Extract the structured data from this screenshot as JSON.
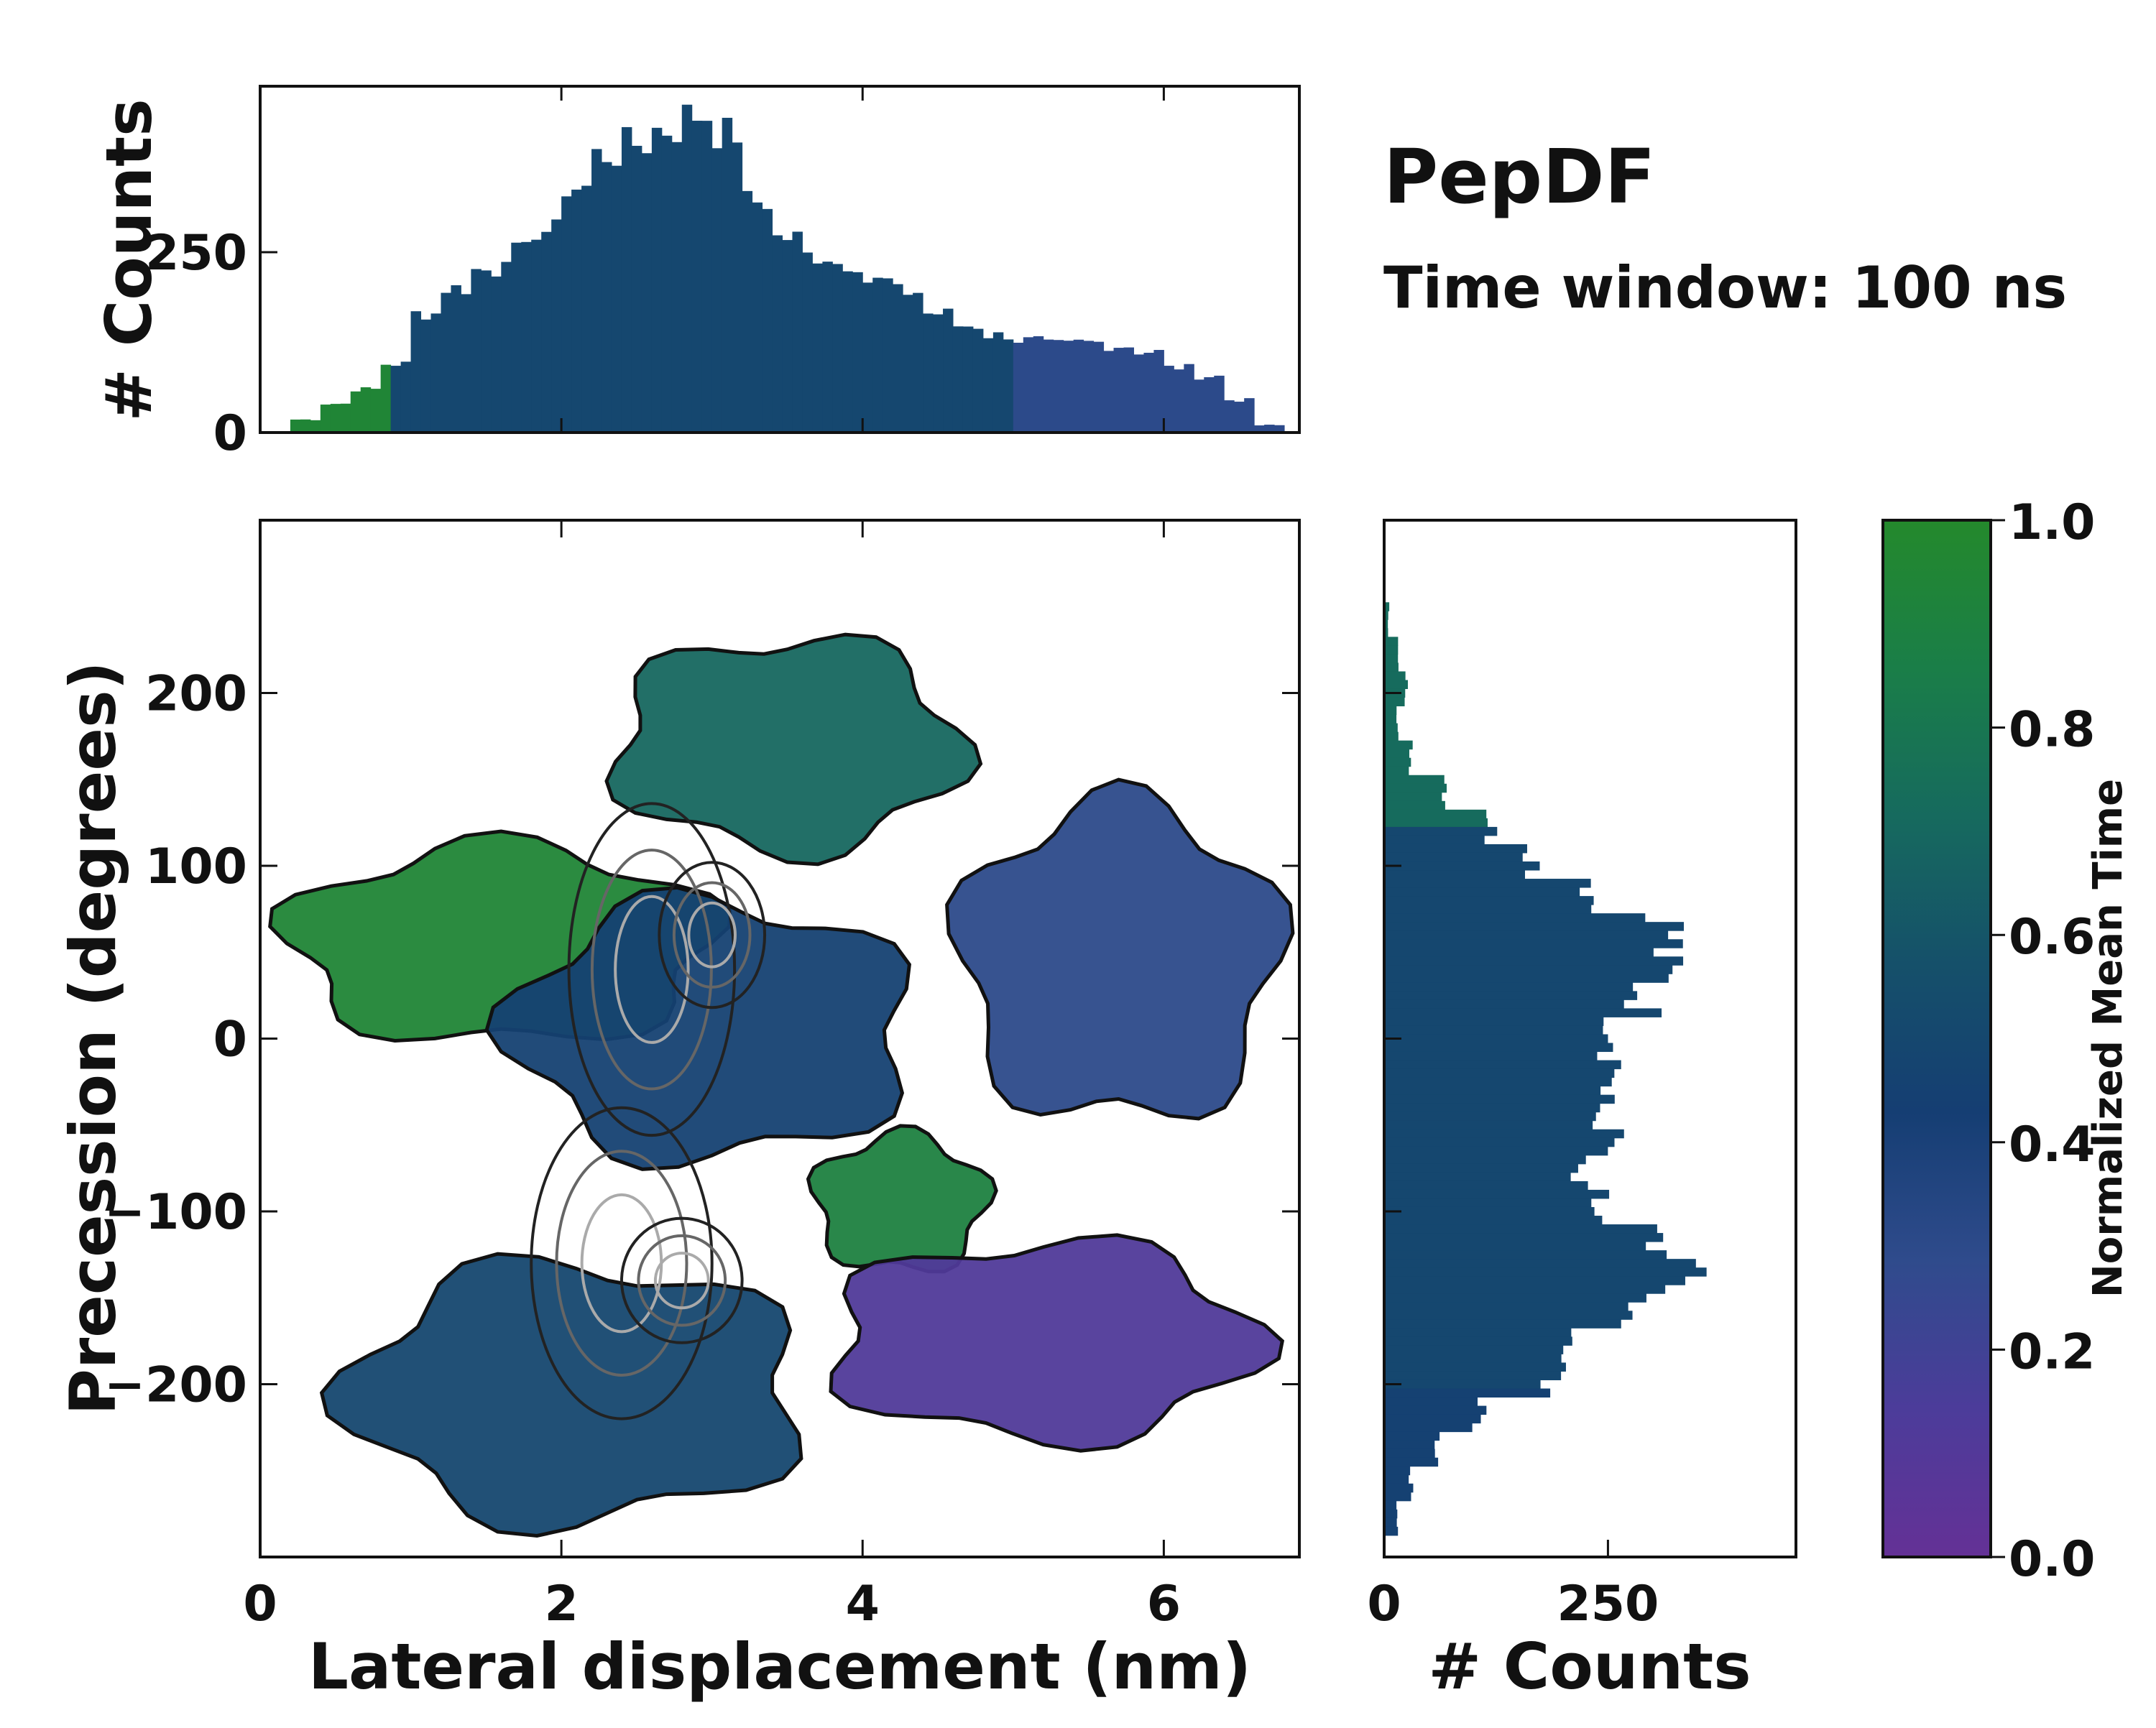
{
  "chart_data": {
    "type": "heatmap",
    "variant": "joint-2d-histogram-with-marginals",
    "annotation_title": "PepDF",
    "annotation_subtitle": "Time window: 100 ns",
    "main": {
      "xlabel": "Lateral displacement (nm)",
      "ylabel": "Precession (degrees)",
      "xlim": [
        0,
        6.9
      ],
      "ylim": [
        -300,
        300
      ],
      "x_ticks": [
        0,
        2,
        4,
        6
      ],
      "x_tick_labels": [
        "0",
        "2",
        "4",
        "6"
      ],
      "y_ticks": [
        -200,
        -100,
        0,
        100,
        200
      ],
      "y_tick_labels": [
        "−200",
        "−100",
        "0",
        "100",
        "200"
      ],
      "color_regions": [
        {
          "label": "green cluster",
          "x": [
            0.0,
            3.2
          ],
          "y": [
            -10,
            120
          ],
          "value": 0.95
        },
        {
          "label": "upper teal cluster",
          "x": [
            2.2,
            4.8
          ],
          "y": [
            100,
            240
          ],
          "value": 0.7
        },
        {
          "label": "dense central band",
          "x": [
            1.5,
            4.5
          ],
          "y": [
            -80,
            90
          ],
          "value": 0.45
        },
        {
          "label": "right blue-violet region",
          "x": [
            4.5,
            6.9
          ],
          "y": [
            -60,
            150
          ],
          "value": 0.3
        },
        {
          "label": "green patch",
          "x": [
            3.6,
            4.9
          ],
          "y": [
            -140,
            -50
          ],
          "value": 0.9
        },
        {
          "label": "lower violet cluster",
          "x": [
            3.6,
            6.8
          ],
          "y": [
            -240,
            -110
          ],
          "value": 0.12
        },
        {
          "label": "lower left mixed",
          "x": [
            0.4,
            3.8
          ],
          "y": [
            -290,
            -120
          ],
          "value": 0.5
        }
      ]
    },
    "top_histogram": {
      "ylabel": "# Counts",
      "y_ticks": [
        0,
        250
      ],
      "y_tick_labels": [
        "0",
        "250"
      ],
      "ylim": [
        0,
        480
      ],
      "bin_width": 0.05,
      "x": [
        0.3,
        0.5,
        0.7,
        0.9,
        1.1,
        1.3,
        1.5,
        1.7,
        1.9,
        2.1,
        2.3,
        2.5,
        2.7,
        2.9,
        3.1,
        3.3,
        3.5,
        3.7,
        3.9,
        4.1,
        4.3,
        4.5,
        4.7,
        4.9,
        5.1,
        5.3,
        5.5,
        5.7,
        5.9,
        6.1,
        6.3,
        6.5,
        6.7,
        6.8
      ],
      "values": [
        18,
        40,
        60,
        95,
        165,
        200,
        225,
        250,
        280,
        340,
        385,
        400,
        420,
        440,
        415,
        320,
        270,
        245,
        235,
        210,
        195,
        165,
        148,
        135,
        128,
        122,
        125,
        120,
        112,
        90,
        78,
        45,
        10,
        0
      ]
    },
    "right_histogram": {
      "xlabel": "# Counts",
      "x_ticks": [
        0,
        250
      ],
      "x_tick_labels": [
        "0",
        "250"
      ],
      "xlim": [
        0,
        460
      ],
      "bin_height": 5,
      "y": [
        240,
        220,
        200,
        180,
        160,
        140,
        120,
        100,
        80,
        60,
        40,
        20,
        0,
        -20,
        -40,
        -60,
        -80,
        -100,
        -120,
        -140,
        -160,
        -180,
        -200,
        -220,
        -240,
        -260,
        -280
      ],
      "values": [
        5,
        15,
        25,
        15,
        30,
        70,
        120,
        170,
        235,
        320,
        310,
        290,
        265,
        260,
        240,
        250,
        210,
        235,
        290,
        340,
        270,
        200,
        190,
        105,
        60,
        30,
        15
      ]
    },
    "colorbar": {
      "label": "Normalized Mean Time",
      "range": [
        0.0,
        1.0
      ],
      "ticks": [
        0.0,
        0.2,
        0.4,
        0.6,
        0.8,
        1.0
      ],
      "tick_labels": [
        "0.0",
        "0.2",
        "0.4",
        "0.6",
        "0.8",
        "1.0"
      ],
      "colormap": [
        "#643196",
        "#4c3c9a",
        "#2f4b8c",
        "#153e73",
        "#15506a",
        "#166a5e",
        "#1a7e48",
        "#24892c"
      ]
    }
  }
}
